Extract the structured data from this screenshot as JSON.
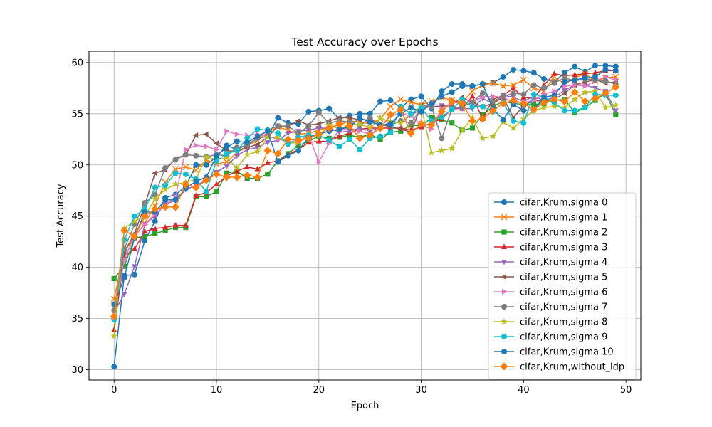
{
  "chart_data": {
    "type": "line",
    "title": "Test Accuracy over Epochs",
    "xlabel": "Epoch",
    "ylabel": "Test Accuracy",
    "xlim": [
      -2.45,
      51.45
    ],
    "ylim": [
      29.0,
      61.1
    ],
    "xticks": [
      0,
      10,
      20,
      30,
      40,
      50
    ],
    "yticks": [
      30,
      35,
      40,
      45,
      50,
      55,
      60
    ],
    "grid": true,
    "legend_position": "lower right",
    "x": [
      0,
      1,
      2,
      3,
      4,
      5,
      6,
      7,
      8,
      9,
      10,
      11,
      12,
      13,
      14,
      15,
      16,
      17,
      18,
      19,
      20,
      21,
      22,
      23,
      24,
      25,
      26,
      27,
      28,
      29,
      30,
      31,
      32,
      33,
      34,
      35,
      36,
      37,
      38,
      39,
      40,
      41,
      42,
      43,
      44,
      45,
      46,
      47,
      48,
      49
    ],
    "series": [
      {
        "name": "cifar,Krum,sigma 0",
        "color": "#1f77b4",
        "marker": "circle",
        "values": [
          30.3,
          39.2,
          39.3,
          42.6,
          44.5,
          46.8,
          47.1,
          47.9,
          50.0,
          50.0,
          50.8,
          51.9,
          51.5,
          52.0,
          52.6,
          52.8,
          54.6,
          54.1,
          54.0,
          55.2,
          55.3,
          55.5,
          54.5,
          54.8,
          55.0,
          55.0,
          56.2,
          56.3,
          55.6,
          56.4,
          56.7,
          55.5,
          57.2,
          57.9,
          57.9,
          57.7,
          57.9,
          58.0,
          58.6,
          59.3,
          59.2,
          59.0,
          58.4,
          58.1,
          59.0,
          59.6,
          59.1,
          59.7,
          59.7,
          59.6
        ]
      },
      {
        "name": "cifar,Krum,sigma 1",
        "color": "#ff7f0e",
        "marker": "x",
        "values": [
          36.9,
          41.5,
          43.0,
          44.3,
          46.0,
          48.3,
          49.6,
          49.8,
          49.5,
          50.5,
          50.1,
          50.3,
          51.2,
          51.9,
          52.4,
          53.2,
          53.7,
          53.4,
          53.0,
          53.1,
          53.4,
          53.7,
          53.9,
          54.3,
          54.2,
          54.0,
          54.5,
          55.7,
          56.4,
          56.1,
          55.9,
          56.2,
          56.6,
          56.3,
          56.1,
          57.2,
          57.8,
          58.0,
          57.7,
          57.8,
          58.3,
          57.5,
          57.2,
          58.6,
          57.9,
          58.5,
          58.9,
          58.2,
          58.5,
          58.6
        ]
      },
      {
        "name": "cifar,Krum,sigma 2",
        "color": "#2ca02c",
        "marker": "square",
        "values": [
          38.9,
          40.1,
          42.9,
          43.0,
          43.3,
          43.6,
          43.9,
          43.9,
          46.9,
          46.9,
          47.4,
          49.2,
          49.4,
          48.7,
          48.7,
          49.1,
          50.4,
          51.1,
          51.9,
          52.3,
          52.8,
          52.6,
          52.7,
          52.9,
          52.7,
          53.0,
          52.5,
          53.2,
          53.3,
          53.9,
          53.8,
          54.6,
          54.4,
          54.1,
          53.4,
          53.6,
          54.9,
          55.7,
          56.2,
          56.0,
          55.9,
          55.9,
          56.0,
          56.3,
          56.4,
          55.1,
          55.6,
          56.3,
          57.0,
          54.9
        ]
      },
      {
        "name": "cifar,Krum,sigma 3",
        "color": "#d62728",
        "marker": "triangle-up",
        "values": [
          33.9,
          41.1,
          41.8,
          43.5,
          43.8,
          43.9,
          44.1,
          44.1,
          47.0,
          47.3,
          48.1,
          48.9,
          49.4,
          49.8,
          49.6,
          50.2,
          50.4,
          51.0,
          51.5,
          52.2,
          52.3,
          52.3,
          52.8,
          53.1,
          53.5,
          53.6,
          53.6,
          53.6,
          53.6,
          53.4,
          53.7,
          54.1,
          54.5,
          55.5,
          55.5,
          56.7,
          54.5,
          56.4,
          56.8,
          57.5,
          56.6,
          56.5,
          57.8,
          58.9,
          58.7,
          58.8,
          58.9,
          59.0,
          59.2,
          59.2
        ]
      },
      {
        "name": "cifar,Krum,sigma 4",
        "color": "#9467bd",
        "marker": "triangle-down",
        "values": [
          35.6,
          37.4,
          40.1,
          44.2,
          45.0,
          46.2,
          46.5,
          47.6,
          48.0,
          48.5,
          49.3,
          49.9,
          50.9,
          51.5,
          51.7,
          52.2,
          52.4,
          53.1,
          53.3,
          53.4,
          53.6,
          53.6,
          53.2,
          53.3,
          53.6,
          53.3,
          53.7,
          54.2,
          54.1,
          54.9,
          55.4,
          55.9,
          55.8,
          55.6,
          55.5,
          55.5,
          56.5,
          56.0,
          56.8,
          56.6,
          56.2,
          56.7,
          56.3,
          56.6,
          57.3,
          57.8,
          57.8,
          57.5,
          57.2,
          55.3
        ]
      },
      {
        "name": "cifar,Krum,sigma 5",
        "color": "#8c564b",
        "marker": "triangle-left",
        "values": [
          35.0,
          41.5,
          43.3,
          46.1,
          49.2,
          49.5,
          50.6,
          51.0,
          52.9,
          53.0,
          52.1,
          51.4,
          51.3,
          51.7,
          52.0,
          52.7,
          53.8,
          53.8,
          54.3,
          53.9,
          54.0,
          54.3,
          54.6,
          54.6,
          54.4,
          54.4,
          54.0,
          53.7,
          53.5,
          53.2,
          55.8,
          55.7,
          55.7,
          55.9,
          56.6,
          56.1,
          55.7,
          56.0,
          56.6,
          54.6,
          55.8,
          56.3,
          56.2,
          56.4,
          57.0,
          57.8,
          58.1,
          58.3,
          58.0,
          58.1
        ]
      },
      {
        "name": "cifar,Krum,sigma 6",
        "color": "#e377c2",
        "marker": "triangle-right",
        "values": [
          35.2,
          40.8,
          43.1,
          44.2,
          45.2,
          46.1,
          46.9,
          51.5,
          51.9,
          51.8,
          51.5,
          53.3,
          53.0,
          52.9,
          53.0,
          52.8,
          52.5,
          52.3,
          52.2,
          52.9,
          50.3,
          52.1,
          53.4,
          53.6,
          53.3,
          53.0,
          53.6,
          54.8,
          55.0,
          54.8,
          53.9,
          53.5,
          55.5,
          56.1,
          56.0,
          56.2,
          56.6,
          56.7,
          56.6,
          56.1,
          56.1,
          56.3,
          56.9,
          57.2,
          57.7,
          57.8,
          57.7,
          58.2,
          58.6,
          58.3
        ]
      },
      {
        "name": "cifar,Krum,sigma 7",
        "color": "#7f7f7f",
        "marker": "circle",
        "values": [
          35.8,
          41.8,
          44.2,
          46.3,
          47.1,
          49.7,
          50.5,
          51.0,
          50.9,
          50.8,
          51.0,
          50.9,
          51.7,
          51.9,
          52.6,
          53.4,
          53.8,
          53.8,
          53.1,
          53.8,
          55.1,
          54.1,
          54.3,
          54.2,
          53.8,
          54.6,
          53.9,
          53.9,
          54.3,
          54.1,
          55.5,
          55.7,
          52.6,
          55.5,
          55.7,
          56.1,
          57.0,
          56.2,
          56.7,
          57.0,
          56.9,
          57.8,
          57.5,
          58.0,
          58.5,
          58.2,
          58.4,
          58.3,
          58.2,
          57.9
        ]
      },
      {
        "name": "cifar,Krum,sigma 8",
        "color": "#bcbd22",
        "marker": "star",
        "values": [
          33.3,
          43.8,
          44.5,
          45.0,
          46.7,
          47.6,
          48.1,
          48.3,
          48.6,
          50.8,
          50.5,
          50.7,
          49.7,
          51.0,
          51.3,
          52.7,
          52.7,
          52.1,
          52.2,
          53.0,
          52.8,
          53.9,
          53.5,
          53.9,
          54.0,
          53.6,
          54.6,
          54.2,
          54.1,
          55.0,
          55.7,
          51.2,
          51.4,
          51.6,
          53.4,
          54.6,
          52.6,
          52.8,
          54.2,
          53.6,
          54.5,
          55.3,
          55.6,
          55.7,
          55.6,
          56.4,
          57.1,
          57.2,
          55.6,
          55.8
        ]
      },
      {
        "name": "cifar,Krum,sigma 9",
        "color": "#17becf",
        "marker": "circle",
        "values": [
          34.9,
          42.7,
          45.0,
          45.7,
          47.8,
          48.0,
          49.2,
          49.1,
          48.6,
          47.4,
          50.4,
          51.1,
          51.4,
          52.6,
          53.5,
          53.4,
          53.1,
          52.0,
          52.7,
          52.9,
          52.9,
          52.4,
          51.8,
          52.5,
          51.5,
          52.6,
          52.8,
          53.2,
          55.7,
          55.0,
          55.6,
          54.3,
          54.7,
          55.4,
          56.4,
          55.7,
          55.7,
          55.2,
          56.1,
          54.3,
          54.1,
          56.9,
          56.6,
          56.1,
          55.3,
          55.3,
          55.6,
          56.9,
          56.8,
          56.8
        ]
      },
      {
        "name": "cifar,Krum,sigma 10",
        "color": "#1f77b4",
        "marker": "hexagon",
        "values": [
          36.4,
          39.0,
          42.9,
          45.4,
          45.4,
          46.6,
          46.6,
          47.7,
          48.4,
          48.8,
          50.9,
          51.7,
          52.3,
          52.2,
          52.8,
          53.3,
          50.3,
          50.9,
          51.4,
          52.7,
          53.0,
          53.3,
          53.5,
          53.7,
          54.6,
          54.2,
          53.9,
          54.0,
          55.0,
          55.6,
          55.2,
          56.0,
          56.7,
          57.1,
          57.7,
          57.7,
          57.9,
          55.5,
          54.4,
          55.9,
          55.3,
          55.4,
          56.6,
          56.8,
          58.1,
          58.3,
          58.5,
          58.6,
          59.3,
          59.2
        ]
      },
      {
        "name": "cifar,Krum,without_ldp",
        "color": "#ff7f0e",
        "marker": "diamond",
        "values": [
          35.2,
          43.6,
          43.0,
          45.0,
          45.7,
          45.9,
          45.9,
          48.1,
          47.8,
          48.5,
          49.1,
          48.8,
          48.8,
          49.0,
          48.8,
          51.4,
          51.1,
          52.5,
          52.4,
          52.6,
          53.0,
          53.6,
          54.0,
          53.8,
          52.6,
          52.9,
          53.6,
          54.9,
          55.4,
          53.1,
          54.0,
          53.9,
          55.2,
          56.2,
          56.0,
          54.3,
          54.5,
          55.3,
          56.0,
          56.3,
          56.0,
          55.4,
          56.1,
          56.4,
          56.2,
          57.1,
          56.2,
          56.5,
          57.0,
          57.6
        ]
      }
    ]
  }
}
